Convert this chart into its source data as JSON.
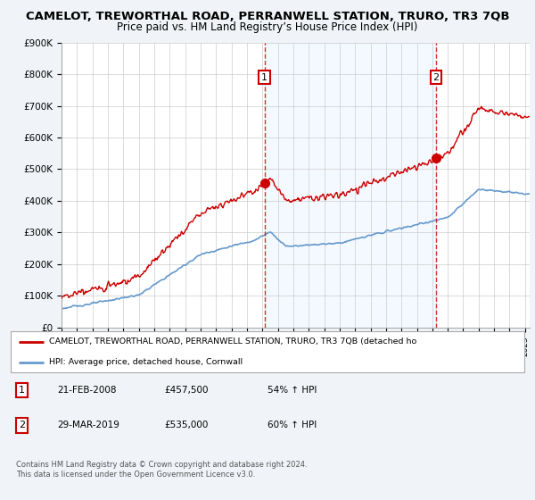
{
  "title": "CAMELOT, TREWORTHAL ROAD, PERRANWELL STATION, TRURO, TR3 7QB",
  "subtitle": "Price paid vs. HM Land Registry’s House Price Index (HPI)",
  "ylim": [
    0,
    900000
  ],
  "yticks": [
    0,
    100000,
    200000,
    300000,
    400000,
    500000,
    600000,
    700000,
    800000,
    900000
  ],
  "ytick_labels": [
    "£0",
    "£100K",
    "£200K",
    "£300K",
    "£400K",
    "£500K",
    "£600K",
    "£700K",
    "£800K",
    "£900K"
  ],
  "xlim_start": 1995.0,
  "xlim_end": 2025.3,
  "red_line_color": "#cc0000",
  "blue_line_color": "#6699cc",
  "shade_color": "#ddeeff",
  "marker1_x": 2008.13,
  "marker1_y": 457500,
  "marker2_x": 2019.24,
  "marker2_y": 535000,
  "vline1_x": 2008.13,
  "vline2_x": 2019.24,
  "legend_red_label": "CAMELOT, TREWORTHAL ROAD, PERRANWELL STATION, TRURO, TR3 7QB (detached ho",
  "legend_blue_label": "HPI: Average price, detached house, Cornwall",
  "table_row1": [
    "1",
    "21-FEB-2008",
    "£457,500",
    "54% ↑ HPI"
  ],
  "table_row2": [
    "2",
    "29-MAR-2019",
    "£535,000",
    "60% ↑ HPI"
  ],
  "footer": "Contains HM Land Registry data © Crown copyright and database right 2024.\nThis data is licensed under the Open Government Licence v3.0.",
  "background_color": "#f0f4f8",
  "plot_bg_color": "#ffffff",
  "grid_color": "#cccccc",
  "title_fontsize": 9.5,
  "subtitle_fontsize": 8.5
}
